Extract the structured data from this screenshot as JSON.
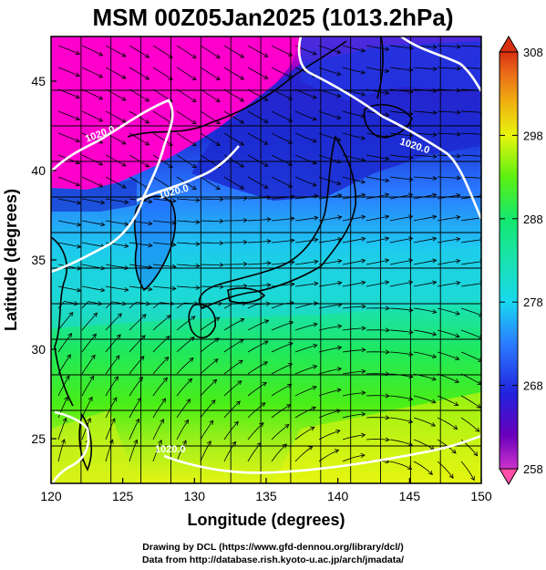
{
  "title": "MSM 00Z05Jan2025 (1013.2hPa)",
  "xaxis": {
    "label": "Longitude (degrees)",
    "ticks": [
      "120",
      "125",
      "130",
      "135",
      "140",
      "145",
      "150"
    ],
    "range": [
      120,
      150
    ]
  },
  "yaxis": {
    "label": "Latitude  (degrees)",
    "ticks": [
      "25",
      "30",
      "35",
      "40",
      "45"
    ],
    "range": [
      22.5,
      47.5
    ]
  },
  "colorbar": {
    "ticks": [
      "258",
      "268",
      "278",
      "288",
      "298",
      "308"
    ],
    "colors": [
      "#ff4fa8",
      "#cc33cc",
      "#6600bb",
      "#2222dd",
      "#2a6fff",
      "#19d7ee",
      "#15e86c",
      "#2ff30f",
      "#b5f21b",
      "#e8f50e",
      "#f0c010",
      "#f08020",
      "#d83010"
    ]
  },
  "contour_labels": [
    "1020.0",
    "1020.0",
    "1020.0",
    "1020.0"
  ],
  "credits": {
    "line1": "Drawing by DCL (https://www.gfd-dennou.org/library/dcl/)",
    "line2": "Data from http://database.rish.kyoto-u.ac.jp/arch/jmadata/"
  }
}
